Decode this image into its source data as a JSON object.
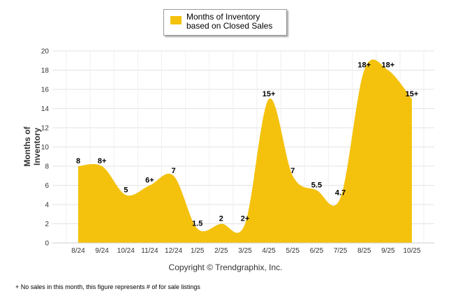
{
  "legend": {
    "label": "Months of Inventory based on Closed Sales",
    "color": "#f4c20d"
  },
  "footnote": "+ No sales in this month, this figure represents # of for sale listings",
  "chart_data": {
    "type": "area",
    "title": "",
    "ylabel": "Months of Inventory",
    "xlabel": "Copyright © Trendgraphix, Inc.",
    "ylim": [
      0,
      20
    ],
    "yticks": [
      0,
      2,
      4,
      6,
      8,
      10,
      12,
      14,
      16,
      18,
      20
    ],
    "grid": true,
    "categories": [
      "8/24",
      "9/24",
      "10/24",
      "11/24",
      "12/24",
      "1/25",
      "2/25",
      "3/25",
      "4/25",
      "5/25",
      "6/25",
      "7/25",
      "8/25",
      "9/25",
      "10/25"
    ],
    "series": [
      {
        "name": "Months of Inventory based on Closed Sales",
        "color": "#f4c20d",
        "values": [
          8,
          8,
          5,
          6,
          7,
          1.5,
          2,
          2,
          15,
          7,
          5.5,
          4.7,
          18,
          18,
          15
        ],
        "labels": [
          "8",
          "8+",
          "5",
          "6+",
          "7",
          "1.5",
          "2",
          "2+",
          "15+",
          "7",
          "5.5",
          "4.7",
          "18+",
          "18+",
          "15+"
        ]
      }
    ]
  }
}
